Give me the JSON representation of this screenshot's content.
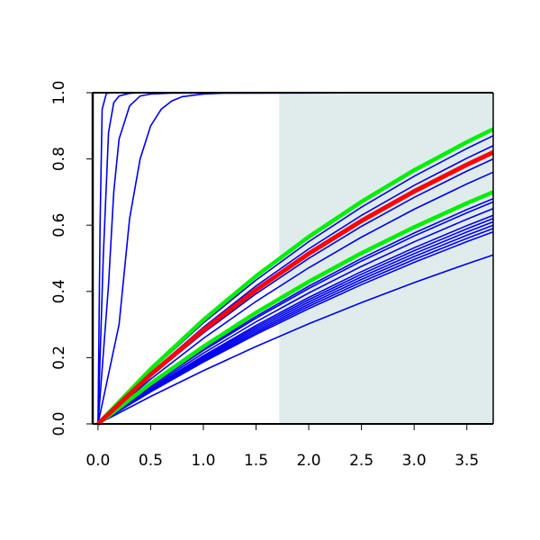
{
  "chart_data": {
    "type": "line",
    "title": "",
    "xlabel": "",
    "ylabel": "",
    "xlim": [
      -0.05,
      3.75
    ],
    "ylim": [
      0,
      1
    ],
    "x_ticks": [
      0.0,
      0.5,
      1.0,
      1.5,
      2.0,
      2.5,
      3.0,
      3.5
    ],
    "x_tick_labels": [
      "0.0",
      "0.5",
      "1.0",
      "1.5",
      "2.0",
      "2.5",
      "3.0",
      "3.5"
    ],
    "y_ticks": [
      0.0,
      0.2,
      0.4,
      0.6,
      0.8,
      1.0
    ],
    "y_tick_labels": [
      "0.0",
      "0.2",
      "0.4",
      "0.6",
      "0.8",
      "1.0"
    ],
    "grid": false,
    "legend": "none",
    "shaded_region": {
      "x_from": 1.72,
      "x_to": 3.75,
      "color": "#e0ecec"
    },
    "colors": {
      "bands": "#0000ee",
      "median": "#ff0000",
      "quantile": "#00ee00",
      "axis": "#000000"
    },
    "saturating_series": [
      {
        "x": [
          0.0,
          0.02,
          0.04,
          0.08,
          0.15,
          3.75
        ],
        "y": [
          0.0,
          0.6,
          0.95,
          0.998,
          1.0,
          1.0
        ]
      },
      {
        "x": [
          0.0,
          0.05,
          0.1,
          0.15,
          0.2,
          0.3,
          0.4,
          3.75
        ],
        "y": [
          0.0,
          0.5,
          0.88,
          0.97,
          0.99,
          0.998,
          1.0,
          1.0
        ]
      },
      {
        "x": [
          0.0,
          0.1,
          0.15,
          0.2,
          0.3,
          0.4,
          0.5,
          0.7,
          3.75
        ],
        "y": [
          0.0,
          0.42,
          0.7,
          0.86,
          0.96,
          0.99,
          0.996,
          0.999,
          1.0
        ]
      },
      {
        "x": [
          0.0,
          0.2,
          0.3,
          0.4,
          0.5,
          0.6,
          0.7,
          0.8,
          1.0,
          1.2,
          3.75
        ],
        "y": [
          0.0,
          0.3,
          0.62,
          0.8,
          0.9,
          0.95,
          0.975,
          0.988,
          0.996,
          0.999,
          1.0
        ]
      }
    ],
    "band_series_end_values": [
      0.87,
      0.84,
      0.8,
      0.76,
      0.7,
      0.68,
      0.67,
      0.65,
      0.63,
      0.62,
      0.61,
      0.6,
      0.59,
      0.58,
      0.51
    ],
    "median_series_end_value": 0.82,
    "quantile_series_end_values": [
      0.89,
      0.7
    ],
    "shared_x": [
      0.0,
      0.5,
      1.0,
      1.5,
      2.0,
      2.5,
      3.0,
      3.5,
      3.75
    ]
  }
}
